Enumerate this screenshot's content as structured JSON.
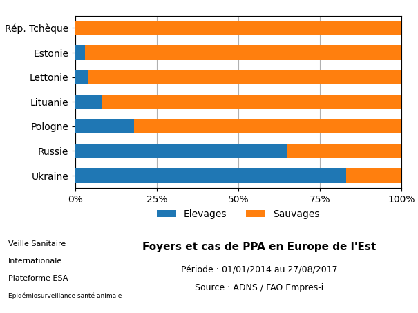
{
  "chart_data": {
    "type": "bar",
    "orientation": "horizontal",
    "stacked": true,
    "title": "Foyers et cas de PPA en Europe de l'Est",
    "subtitle": [
      "Période : 01/01/2014 au 27/08/2017",
      "Source : ADNS / FAO Empres-i"
    ],
    "annotations": [
      "Veille Sanitaire",
      "Internationale",
      "Plateforme ESA",
      "Epidémiosurveillance santé animale"
    ],
    "categories": [
      "Ukraine",
      "Russie",
      "Pologne",
      "Lituanie",
      "Lettonie",
      "Estonie",
      "Rép. Tchèque"
    ],
    "series": [
      {
        "name": "Elevages",
        "values": [
          83,
          65,
          18,
          8,
          4,
          3,
          0
        ]
      },
      {
        "name": "Sauvages",
        "values": [
          17,
          35,
          82,
          92,
          96,
          97,
          100
        ]
      }
    ],
    "xlim": [
      0,
      100
    ],
    "xticks": [
      {
        "value": 0,
        "label": "0%"
      },
      {
        "value": 25,
        "label": "25%"
      },
      {
        "value": 50,
        "label": "50%"
      },
      {
        "value": 75,
        "label": "75%"
      },
      {
        "value": 100,
        "label": "100%"
      }
    ],
    "grid": true,
    "legend": "lower center"
  }
}
